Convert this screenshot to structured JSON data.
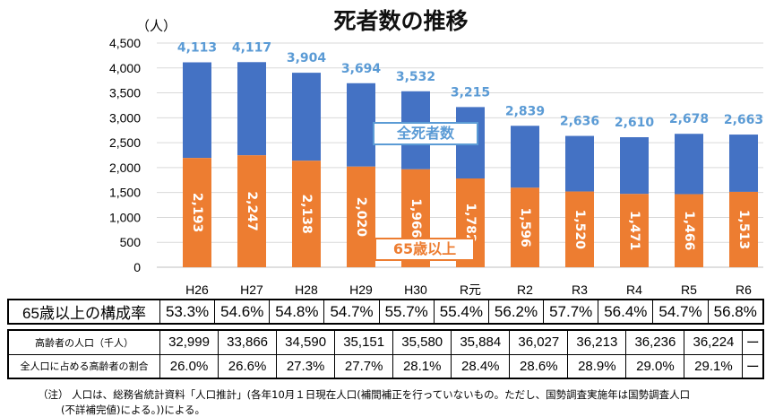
{
  "chart_data": {
    "type": "bar",
    "title": "死者数の推移",
    "ylabel": "（人）",
    "ylim": [
      0,
      4500
    ],
    "yticks": [
      "0",
      "500",
      "1,000",
      "1,500",
      "2,000",
      "2,500",
      "3,000",
      "3,500",
      "4,000",
      "4,500"
    ],
    "grid": true,
    "categories": [
      "H26",
      "H27",
      "H28",
      "H29",
      "H30",
      "R元",
      "R2",
      "R3",
      "R4",
      "R5",
      "R6"
    ],
    "series": [
      {
        "name": "全死者数",
        "values": [
          4113,
          4117,
          3904,
          3694,
          3532,
          3215,
          2839,
          2636,
          2610,
          2678,
          2663
        ],
        "labels": [
          "4,113",
          "4,117",
          "3,904",
          "3,694",
          "3,532",
          "3,215",
          "2,839",
          "2,636",
          "2,610",
          "2,678",
          "2,663"
        ],
        "color": "#4472C4",
        "label_color": "#5B9BD5"
      },
      {
        "name": "65歳以上",
        "values": [
          2193,
          2247,
          2138,
          2020,
          1966,
          1782,
          1596,
          1520,
          1471,
          1466,
          1513
        ],
        "labels": [
          "2,193",
          "2,247",
          "2,138",
          "2,020",
          "1,966",
          "1,782",
          "1,596",
          "1,520",
          "1,471",
          "1,466",
          "1,513"
        ],
        "color": "#ED7D31"
      }
    ]
  },
  "table1": {
    "label": "65歳以上の構成率",
    "values": [
      "53.3%",
      "54.6%",
      "54.8%",
      "54.7%",
      "55.7%",
      "55.4%",
      "56.2%",
      "57.7%",
      "56.4%",
      "54.7%",
      "56.8%"
    ]
  },
  "table2": {
    "rows": [
      {
        "label": "高齢者の人口（千人）",
        "values": [
          "32,999",
          "33,866",
          "34,590",
          "35,151",
          "35,580",
          "35,884",
          "36,027",
          "36,213",
          "36,236",
          "36,224",
          "ー"
        ]
      },
      {
        "label": "全人口に占める高齢者の割合",
        "values": [
          "26.0%",
          "26.6%",
          "27.3%",
          "27.7%",
          "28.1%",
          "28.4%",
          "28.6%",
          "28.9%",
          "29.0%",
          "29.1%",
          "ー"
        ]
      }
    ]
  },
  "note": {
    "line1": "（注） 人口は、総務省統計資料「人口推計」(各年10月１日現在人口(補間補正を行っていないもの。ただし、国勢調査実施年は国勢調査人口",
    "line2": "(不詳補完値)による。))による。"
  }
}
